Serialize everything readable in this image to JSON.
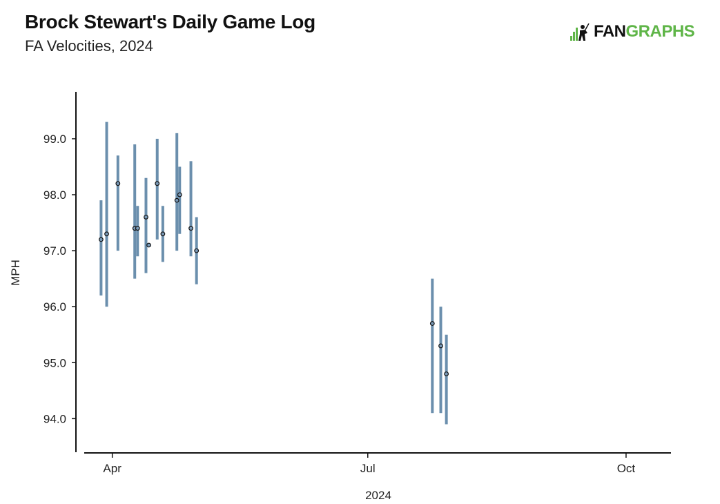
{
  "header": {
    "title": "Brock Stewart's Daily Game Log",
    "subtitle": "FA Velocities, 2024"
  },
  "logo": {
    "text_main": "FAN",
    "text_accent": "GRAPHS",
    "icon": "batter-silhouette-icon",
    "accent_color": "#5fb548"
  },
  "chart_data": {
    "type": "scatter",
    "subtype": "range-bars-with-points",
    "title": "Brock Stewart's Daily Game Log",
    "subtitle": "FA Velocities, 2024",
    "xlabel": "2024",
    "ylabel": "MPH",
    "x_type": "date",
    "xlim": [
      "2024-03-22",
      "2024-10-17"
    ],
    "ylim": [
      93.4,
      99.9
    ],
    "x_ticks": [
      {
        "date": "2024-04-01",
        "label": "Apr"
      },
      {
        "date": "2024-07-01",
        "label": "Jul"
      },
      {
        "date": "2024-10-01",
        "label": "Oct"
      }
    ],
    "y_ticks": [
      94.0,
      95.0,
      96.0,
      97.0,
      98.0,
      99.0
    ],
    "y_tick_labels": [
      "94.0",
      "95.0",
      "96.0",
      "97.0",
      "98.0",
      "99.0"
    ],
    "grid": false,
    "bar_color": "#6b8fad",
    "point_fill": "#7a9ab8",
    "point_edge": "#111111",
    "points": [
      {
        "date": "2024-03-28",
        "avg": 97.2,
        "min": 96.2,
        "max": 97.9
      },
      {
        "date": "2024-03-30",
        "avg": 97.3,
        "min": 96.0,
        "max": 99.3
      },
      {
        "date": "2024-04-03",
        "avg": 98.2,
        "min": 97.0,
        "max": 98.7
      },
      {
        "date": "2024-04-09",
        "avg": 97.4,
        "min": 96.5,
        "max": 98.9
      },
      {
        "date": "2024-04-10",
        "avg": 97.4,
        "min": 96.9,
        "max": 97.8
      },
      {
        "date": "2024-04-13",
        "avg": 97.6,
        "min": 96.6,
        "max": 98.3
      },
      {
        "date": "2024-04-14",
        "avg": 97.1,
        "min": 97.1,
        "max": 97.1
      },
      {
        "date": "2024-04-17",
        "avg": 98.2,
        "min": 97.2,
        "max": 99.0
      },
      {
        "date": "2024-04-19",
        "avg": 97.3,
        "min": 96.8,
        "max": 97.8
      },
      {
        "date": "2024-04-24",
        "avg": 97.9,
        "min": 97.0,
        "max": 99.1
      },
      {
        "date": "2024-04-25",
        "avg": 98.0,
        "min": 97.3,
        "max": 98.5
      },
      {
        "date": "2024-04-29",
        "avg": 97.4,
        "min": 96.9,
        "max": 98.6
      },
      {
        "date": "2024-05-01",
        "avg": 97.0,
        "min": 96.4,
        "max": 97.6
      },
      {
        "date": "2024-07-24",
        "avg": 95.7,
        "min": 94.1,
        "max": 96.5
      },
      {
        "date": "2024-07-27",
        "avg": 95.3,
        "min": 94.1,
        "max": 96.0
      },
      {
        "date": "2024-07-29",
        "avg": 94.8,
        "min": 93.9,
        "max": 95.5
      }
    ]
  }
}
